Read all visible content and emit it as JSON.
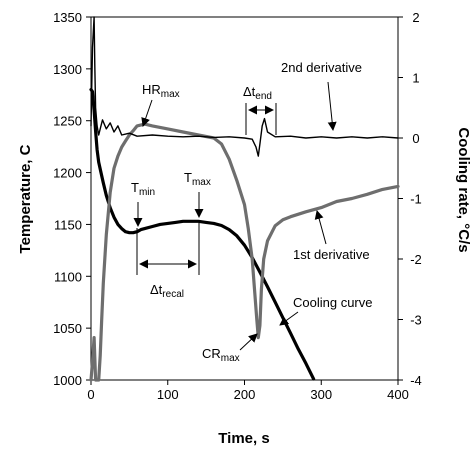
{
  "chart_data": {
    "type": "line",
    "xlabel": "Time, s",
    "ylabel_left": "Temperature, C",
    "ylabel_right": "Cooling rate, °C/s",
    "xlim": [
      0,
      400
    ],
    "ylim_left": [
      1000,
      1350
    ],
    "ylim_right": [
      -4,
      2
    ],
    "x_ticks": [
      "0",
      "100",
      "200",
      "300",
      "400"
    ],
    "y_left_ticks": [
      "1000",
      "1050",
      "1100",
      "1150",
      "1200",
      "1250",
      "1300",
      "1350"
    ],
    "y_right_ticks": [
      "-4",
      "-3",
      "-2",
      "-1",
      "0",
      "1",
      "2"
    ],
    "grid": false,
    "series": [
      {
        "axis": "left",
        "color": "#000000",
        "x": [
          0,
          2,
          4,
          6,
          8,
          10,
          13,
          16,
          20,
          25,
          30,
          35,
          40,
          45,
          50,
          55,
          60,
          65,
          70,
          80,
          90,
          100,
          110,
          120,
          130,
          140,
          150,
          160,
          170,
          180,
          190,
          200,
          210,
          220,
          230,
          240,
          250,
          260,
          270,
          280,
          290
        ],
        "values": [
          1280,
          1278,
          1260,
          1240,
          1222,
          1210,
          1200,
          1190,
          1178,
          1166,
          1157,
          1150,
          1146,
          1143,
          1142,
          1142,
          1143,
          1145,
          1146,
          1148,
          1150,
          1151,
          1152,
          1153,
          1153,
          1153,
          1152,
          1151,
          1149,
          1145,
          1139,
          1130,
          1118,
          1104,
          1090,
          1075,
          1060,
          1045,
          1030,
          1016,
          1001
        ]
      },
      {
        "axis": "right",
        "color": "#6e6e6e",
        "x": [
          0,
          2,
          4,
          6,
          8,
          10,
          12,
          14,
          16,
          20,
          25,
          30,
          35,
          40,
          45,
          50,
          55,
          60,
          70,
          80,
          100,
          120,
          140,
          160,
          170,
          180,
          190,
          200,
          205,
          210,
          213,
          216,
          218,
          220,
          222,
          225,
          230,
          240,
          250,
          260,
          280,
          300,
          320,
          340,
          360,
          380,
          400
        ],
        "values": [
          -4.0,
          -3.7,
          -3.3,
          -4.0,
          -4.0,
          -4.0,
          -3.6,
          -3.0,
          -2.4,
          -1.6,
          -0.9,
          -0.5,
          -0.3,
          -0.15,
          -0.05,
          0.05,
          0.12,
          0.2,
          0.23,
          0.2,
          0.15,
          0.1,
          0.05,
          0.0,
          -0.1,
          -0.35,
          -0.7,
          -1.1,
          -1.5,
          -2.0,
          -2.5,
          -3.0,
          -3.3,
          -3.1,
          -2.5,
          -2.0,
          -1.7,
          -1.45,
          -1.35,
          -1.3,
          -1.22,
          -1.15,
          -1.05,
          -1.0,
          -0.93,
          -0.85,
          -0.8
        ]
      },
      {
        "axis": "right",
        "color": "#000000",
        "x": [
          0,
          2,
          4,
          5,
          6,
          8,
          10,
          12,
          15,
          20,
          25,
          30,
          35,
          40,
          50,
          60,
          80,
          100,
          120,
          140,
          160,
          180,
          200,
          210,
          215,
          218,
          220,
          223,
          226,
          230,
          240,
          260,
          280,
          300,
          320,
          340,
          360,
          380,
          400
        ],
        "values": [
          0.2,
          1.5,
          2.2,
          1.2,
          0.5,
          0.2,
          0.05,
          0.15,
          0.3,
          0.15,
          0.25,
          0.1,
          0.2,
          0.05,
          0.08,
          0.03,
          0.05,
          0.03,
          0.02,
          0.03,
          0.01,
          0.02,
          0.0,
          -0.02,
          -0.15,
          -0.3,
          -0.1,
          0.2,
          0.32,
          0.1,
          0.02,
          0.03,
          0.0,
          0.02,
          0.0,
          0.02,
          0.0,
          0.02,
          0.0
        ]
      }
    ],
    "annotations": [
      {
        "text": "2nd derivative"
      },
      {
        "text": "HR",
        "sub": "max"
      },
      {
        "text": "Δt",
        "sub": "end"
      },
      {
        "text": "T",
        "sub": "min"
      },
      {
        "text": "T",
        "sub": "max"
      },
      {
        "text": "Δt",
        "sub": "recal"
      },
      {
        "text": "1st derivative"
      },
      {
        "text": "Cooling curve"
      },
      {
        "text": "CR",
        "sub": "max"
      }
    ]
  }
}
